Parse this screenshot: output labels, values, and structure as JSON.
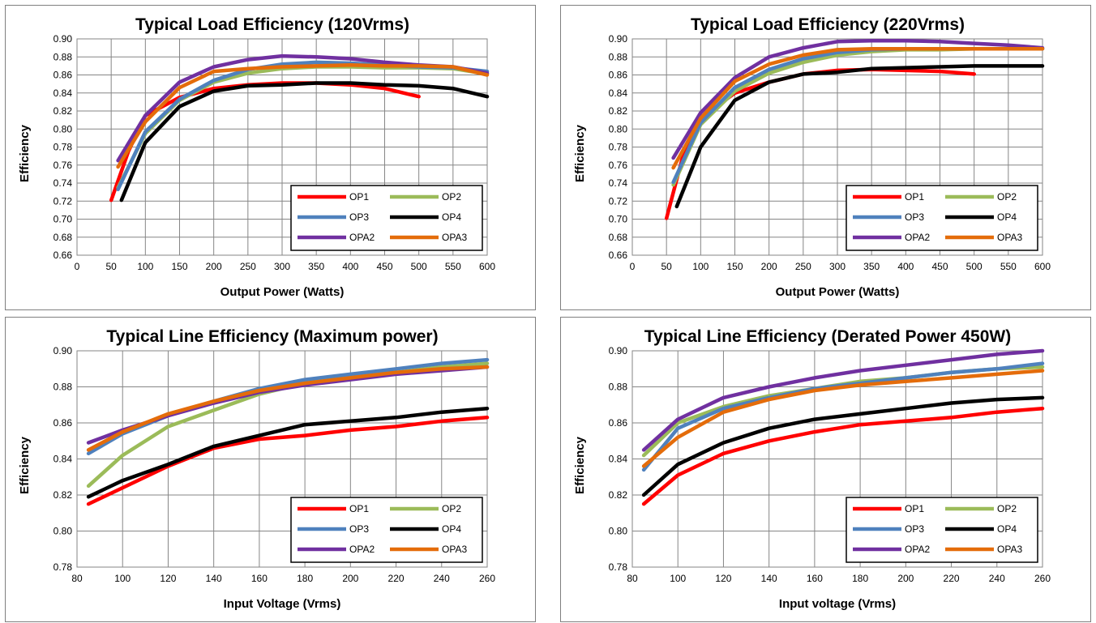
{
  "chart_data": [
    {
      "type": "line",
      "title": "Typical Load Efficiency (120Vrms)",
      "xlabel": "Output Power (Watts)",
      "ylabel": "Efficiency",
      "xlim": [
        0,
        600
      ],
      "ylim": [
        0.66,
        0.9
      ],
      "xticks": [
        "0",
        "50",
        "100",
        "150",
        "200",
        "250",
        "300",
        "350",
        "400",
        "450",
        "500",
        "550",
        "600"
      ],
      "yticks": [
        "0.66",
        "0.68",
        "0.70",
        "0.72",
        "0.74",
        "0.76",
        "0.78",
        "0.80",
        "0.82",
        "0.84",
        "0.86",
        "0.88",
        "0.90"
      ],
      "grid": true,
      "legend": "bottom-right",
      "series": [
        {
          "name": "OP1",
          "color": "#ff0000",
          "x": [
            50,
            75,
            100,
            150,
            200,
            250,
            300,
            350,
            400,
            450,
            500
          ],
          "y": [
            0.721,
            0.775,
            0.815,
            0.835,
            0.845,
            0.849,
            0.851,
            0.851,
            0.849,
            0.845,
            0.836
          ]
        },
        {
          "name": "OP2",
          "color": "#9bbb59",
          "x": [
            60,
            100,
            150,
            200,
            250,
            300,
            350,
            400,
            450,
            500,
            550,
            600
          ],
          "y": [
            0.735,
            0.795,
            0.832,
            0.852,
            0.862,
            0.867,
            0.869,
            0.869,
            0.868,
            0.868,
            0.867,
            0.861
          ]
        },
        {
          "name": "OP3",
          "color": "#4f81bd",
          "x": [
            60,
            100,
            150,
            200,
            250,
            300,
            350,
            400,
            450,
            500,
            550,
            600
          ],
          "y": [
            0.733,
            0.797,
            0.833,
            0.854,
            0.866,
            0.872,
            0.874,
            0.873,
            0.871,
            0.869,
            0.868,
            0.864
          ]
        },
        {
          "name": "OP4",
          "color": "#000000",
          "x": [
            65,
            100,
            150,
            200,
            250,
            300,
            350,
            400,
            450,
            500,
            550,
            600
          ],
          "y": [
            0.721,
            0.785,
            0.825,
            0.842,
            0.848,
            0.849,
            0.851,
            0.851,
            0.849,
            0.848,
            0.845,
            0.836
          ]
        },
        {
          "name": "OPA2",
          "color": "#7030a0",
          "x": [
            60,
            100,
            150,
            200,
            250,
            300,
            350,
            400,
            450,
            500,
            550,
            600
          ],
          "y": [
            0.765,
            0.815,
            0.852,
            0.869,
            0.877,
            0.881,
            0.88,
            0.878,
            0.874,
            0.871,
            0.869,
            0.862
          ]
        },
        {
          "name": "OPA3",
          "color": "#e46c0a",
          "x": [
            60,
            100,
            150,
            200,
            250,
            300,
            350,
            400,
            450,
            500,
            550,
            600
          ],
          "y": [
            0.758,
            0.808,
            0.846,
            0.864,
            0.867,
            0.869,
            0.87,
            0.871,
            0.87,
            0.87,
            0.869,
            0.86
          ]
        }
      ]
    },
    {
      "type": "line",
      "title": "Typical Load Efficiency (220Vrms)",
      "xlabel": "Output Power (Watts)",
      "ylabel": "Efficiency",
      "xlim": [
        0,
        600
      ],
      "ylim": [
        0.66,
        0.9
      ],
      "xticks": [
        "0",
        "50",
        "100",
        "150",
        "200",
        "250",
        "300",
        "350",
        "400",
        "450",
        "500",
        "550",
        "600"
      ],
      "yticks": [
        "0.66",
        "0.68",
        "0.70",
        "0.72",
        "0.74",
        "0.76",
        "0.78",
        "0.80",
        "0.82",
        "0.84",
        "0.86",
        "0.88",
        "0.90"
      ],
      "grid": true,
      "legend": "bottom-right",
      "series": [
        {
          "name": "OP1",
          "color": "#ff0000",
          "x": [
            50,
            75,
            100,
            150,
            200,
            250,
            300,
            350,
            400,
            450,
            500
          ],
          "y": [
            0.701,
            0.773,
            0.812,
            0.84,
            0.852,
            0.861,
            0.865,
            0.866,
            0.865,
            0.864,
            0.861
          ]
        },
        {
          "name": "OP2",
          "color": "#9bbb59",
          "x": [
            60,
            100,
            150,
            200,
            250,
            300,
            350,
            400,
            450,
            500,
            550,
            600
          ],
          "y": [
            0.738,
            0.805,
            0.842,
            0.862,
            0.874,
            0.882,
            0.886,
            0.888,
            0.888,
            0.889,
            0.889,
            0.889
          ]
        },
        {
          "name": "OP3",
          "color": "#4f81bd",
          "x": [
            60,
            100,
            150,
            200,
            250,
            300,
            350,
            400,
            450,
            500,
            550,
            600
          ],
          "y": [
            0.741,
            0.807,
            0.846,
            0.866,
            0.878,
            0.885,
            0.888,
            0.889,
            0.889,
            0.889,
            0.889,
            0.889
          ]
        },
        {
          "name": "OP4",
          "color": "#000000",
          "x": [
            65,
            100,
            150,
            200,
            250,
            300,
            350,
            400,
            450,
            500,
            550,
            600
          ],
          "y": [
            0.714,
            0.78,
            0.832,
            0.852,
            0.861,
            0.863,
            0.867,
            0.868,
            0.869,
            0.87,
            0.87,
            0.87
          ]
        },
        {
          "name": "OPA2",
          "color": "#7030a0",
          "x": [
            60,
            100,
            150,
            200,
            250,
            300,
            350,
            400,
            450,
            500,
            550,
            600
          ],
          "y": [
            0.768,
            0.818,
            0.857,
            0.88,
            0.89,
            0.897,
            0.898,
            0.898,
            0.897,
            0.895,
            0.893,
            0.89
          ]
        },
        {
          "name": "OPA3",
          "color": "#e46c0a",
          "x": [
            60,
            100,
            150,
            200,
            250,
            300,
            350,
            400,
            450,
            500,
            550,
            600
          ],
          "y": [
            0.757,
            0.812,
            0.853,
            0.872,
            0.882,
            0.888,
            0.889,
            0.889,
            0.889,
            0.889,
            0.889,
            0.889
          ]
        }
      ]
    },
    {
      "type": "line",
      "title": "Typical Line Efficiency (Maximum power)",
      "xlabel": "Input Voltage (Vrms)",
      "ylabel": "Efficiency",
      "xlim": [
        80,
        260
      ],
      "ylim": [
        0.78,
        0.9
      ],
      "xticks": [
        "80",
        "100",
        "120",
        "140",
        "160",
        "180",
        "200",
        "220",
        "240",
        "260"
      ],
      "yticks": [
        "0.78",
        "0.80",
        "0.82",
        "0.84",
        "0.86",
        "0.88",
        "0.90"
      ],
      "grid": true,
      "legend": "bottom-right",
      "series": [
        {
          "name": "OP1",
          "color": "#ff0000",
          "x": [
            85,
            100,
            120,
            140,
            160,
            180,
            200,
            220,
            240,
            260
          ],
          "y": [
            0.815,
            0.824,
            0.836,
            0.846,
            0.851,
            0.853,
            0.856,
            0.858,
            0.861,
            0.863
          ]
        },
        {
          "name": "OP2",
          "color": "#9bbb59",
          "x": [
            85,
            100,
            120,
            140,
            160,
            180,
            200,
            220,
            240,
            260
          ],
          "y": [
            0.825,
            0.842,
            0.858,
            0.867,
            0.876,
            0.882,
            0.886,
            0.888,
            0.891,
            0.893
          ]
        },
        {
          "name": "OP3",
          "color": "#4f81bd",
          "x": [
            85,
            100,
            120,
            140,
            160,
            180,
            200,
            220,
            240,
            260
          ],
          "y": [
            0.843,
            0.854,
            0.864,
            0.872,
            0.879,
            0.884,
            0.887,
            0.89,
            0.893,
            0.895
          ]
        },
        {
          "name": "OP4",
          "color": "#000000",
          "x": [
            85,
            100,
            120,
            140,
            160,
            180,
            200,
            220,
            240,
            260
          ],
          "y": [
            0.819,
            0.828,
            0.837,
            0.847,
            0.853,
            0.859,
            0.861,
            0.863,
            0.866,
            0.868
          ]
        },
        {
          "name": "OPA2",
          "color": "#7030a0",
          "x": [
            85,
            100,
            120,
            140,
            160,
            180,
            200,
            220,
            240,
            260
          ],
          "y": [
            0.849,
            0.856,
            0.864,
            0.871,
            0.877,
            0.881,
            0.884,
            0.887,
            0.889,
            0.891
          ]
        },
        {
          "name": "OPA3",
          "color": "#e46c0a",
          "x": [
            85,
            100,
            120,
            140,
            160,
            180,
            200,
            220,
            240,
            260
          ],
          "y": [
            0.845,
            0.855,
            0.865,
            0.872,
            0.878,
            0.882,
            0.885,
            0.888,
            0.89,
            0.891
          ]
        }
      ]
    },
    {
      "type": "line",
      "title": "Typical Line Efficiency (Derated Power 450W)",
      "xlabel": "Input voltage (Vrms)",
      "ylabel": "Efficiency",
      "xlim": [
        80,
        260
      ],
      "ylim": [
        0.78,
        0.9
      ],
      "xticks": [
        "80",
        "100",
        "120",
        "140",
        "160",
        "180",
        "200",
        "220",
        "240",
        "260"
      ],
      "yticks": [
        "0.78",
        "0.80",
        "0.82",
        "0.84",
        "0.86",
        "0.88",
        "0.90"
      ],
      "grid": true,
      "legend": "bottom-right",
      "series": [
        {
          "name": "OP1",
          "color": "#ff0000",
          "x": [
            85,
            100,
            120,
            140,
            160,
            180,
            200,
            220,
            240,
            260
          ],
          "y": [
            0.815,
            0.831,
            0.843,
            0.85,
            0.855,
            0.859,
            0.861,
            0.863,
            0.866,
            0.868
          ]
        },
        {
          "name": "OP2",
          "color": "#9bbb59",
          "x": [
            85,
            100,
            120,
            140,
            160,
            180,
            200,
            220,
            240,
            260
          ],
          "y": [
            0.842,
            0.86,
            0.869,
            0.875,
            0.879,
            0.883,
            0.885,
            0.888,
            0.89,
            0.891
          ]
        },
        {
          "name": "OP3",
          "color": "#4f81bd",
          "x": [
            85,
            100,
            120,
            140,
            160,
            180,
            200,
            220,
            240,
            260
          ],
          "y": [
            0.834,
            0.857,
            0.868,
            0.874,
            0.879,
            0.882,
            0.885,
            0.888,
            0.89,
            0.893
          ]
        },
        {
          "name": "OP4",
          "color": "#000000",
          "x": [
            85,
            100,
            120,
            140,
            160,
            180,
            200,
            220,
            240,
            260
          ],
          "y": [
            0.82,
            0.837,
            0.849,
            0.857,
            0.862,
            0.865,
            0.868,
            0.871,
            0.873,
            0.874
          ]
        },
        {
          "name": "OPA2",
          "color": "#7030a0",
          "x": [
            85,
            100,
            120,
            140,
            160,
            180,
            200,
            220,
            240,
            260
          ],
          "y": [
            0.845,
            0.862,
            0.874,
            0.88,
            0.885,
            0.889,
            0.892,
            0.895,
            0.898,
            0.9
          ]
        },
        {
          "name": "OPA3",
          "color": "#e46c0a",
          "x": [
            85,
            100,
            120,
            140,
            160,
            180,
            200,
            220,
            240,
            260
          ],
          "y": [
            0.836,
            0.852,
            0.866,
            0.873,
            0.878,
            0.881,
            0.883,
            0.885,
            0.887,
            0.889
          ]
        }
      ]
    }
  ]
}
